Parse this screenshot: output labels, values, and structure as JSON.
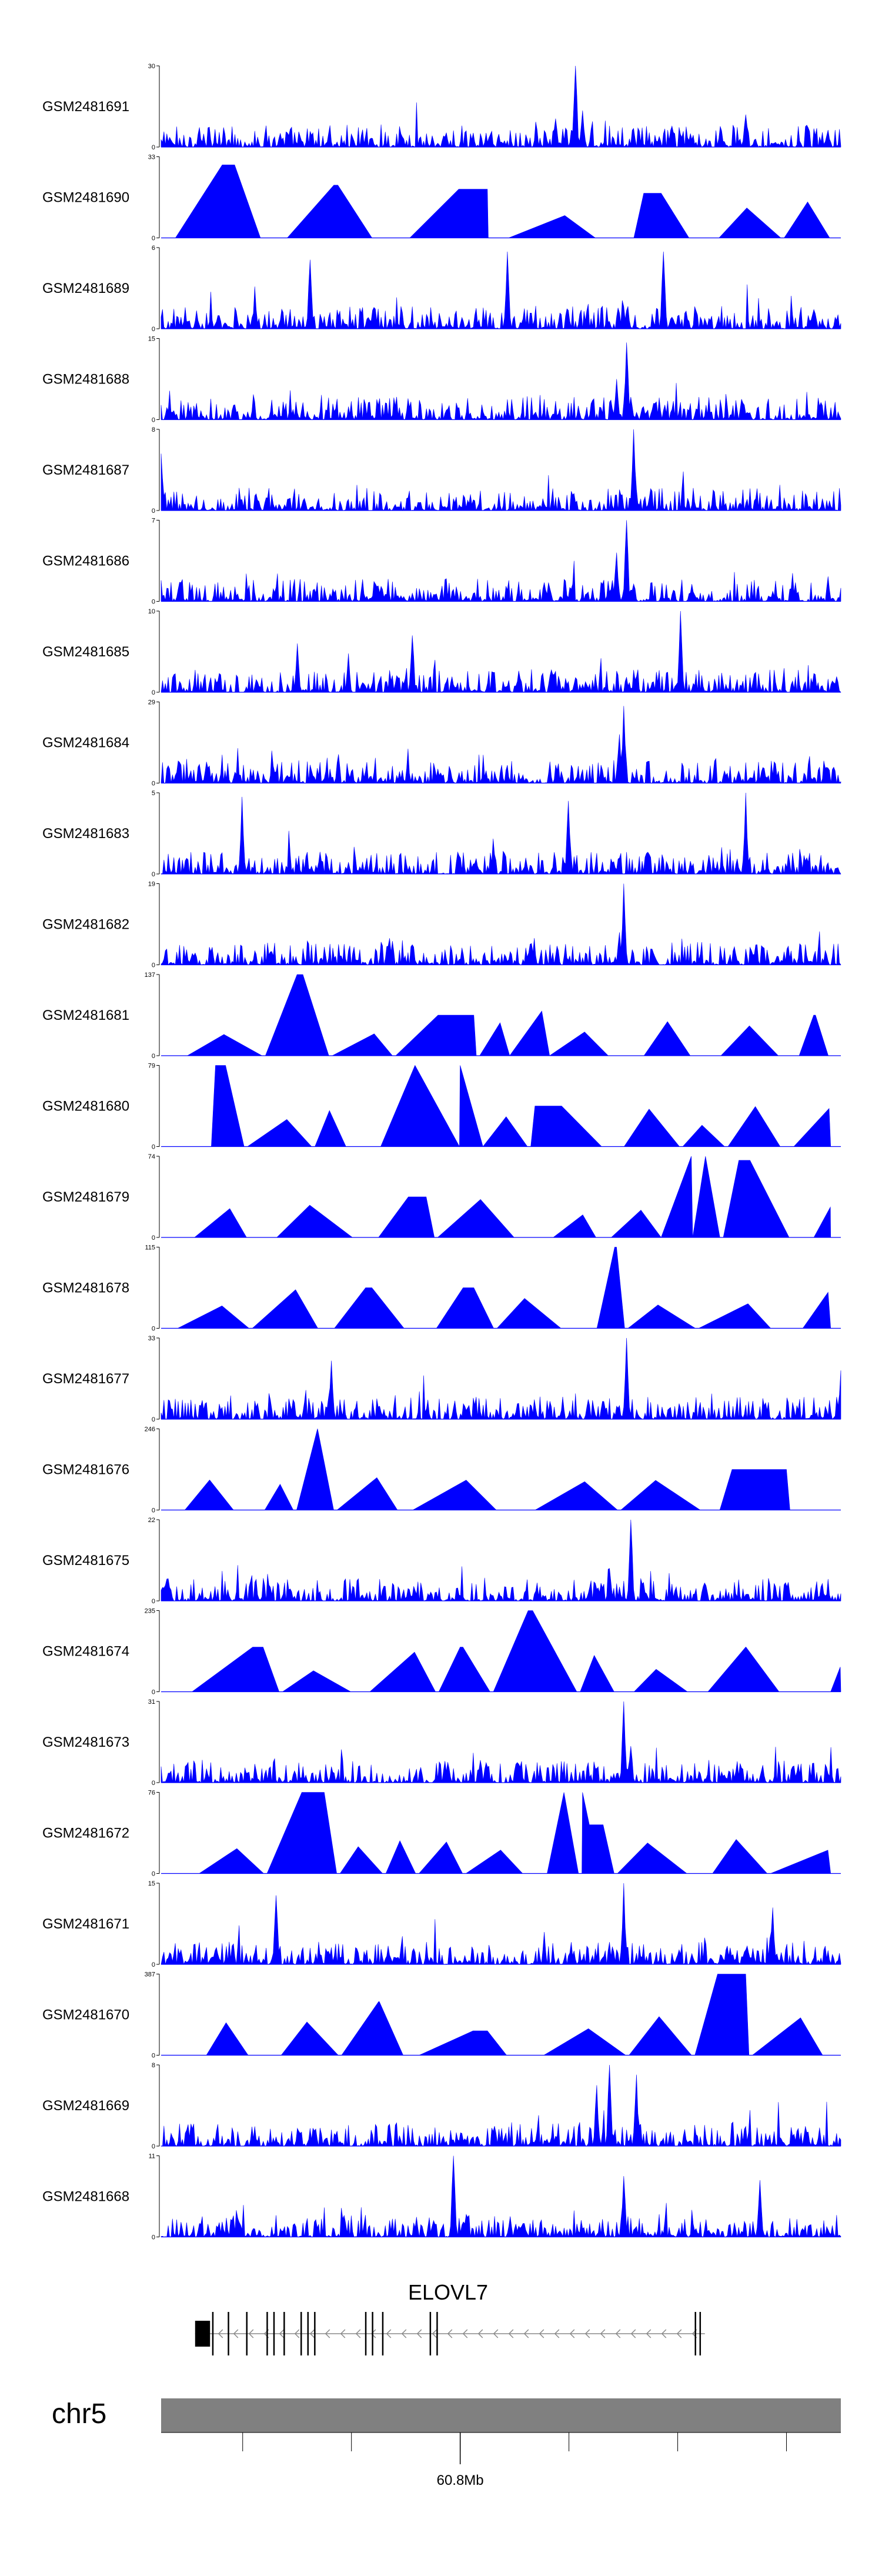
{
  "colors": {
    "signal": "#0000ff",
    "ideogram": "#808080",
    "axis": "#000000"
  },
  "chart_data": {
    "type": "area",
    "title": "",
    "xlabel": "",
    "ylabel": "",
    "tracks": [
      {
        "name": "GSM2481691",
        "ymax": "30",
        "style": "dense",
        "peaks": [
          [
            0.61,
            1.0
          ],
          [
            0.62,
            0.45
          ],
          [
            0.58,
            0.35
          ],
          [
            0.86,
            0.4
          ]
        ]
      },
      {
        "name": "GSM2481690",
        "ymax": "33",
        "style": "triangles",
        "peaks": [
          [
            0.09,
            0.9
          ],
          [
            0.26,
            0.65
          ],
          [
            0.48,
            0.6
          ],
          [
            0.71,
            0.55
          ]
        ]
      },
      {
        "name": "GSM2481689",
        "ymax": "6",
        "style": "dense",
        "peaks": [
          [
            0.51,
            0.95
          ],
          [
            0.74,
            0.95
          ],
          [
            0.22,
            0.85
          ]
        ]
      },
      {
        "name": "GSM2481688",
        "ymax": "15",
        "style": "dense",
        "peaks": [
          [
            0.685,
            0.95
          ],
          [
            0.67,
            0.5
          ]
        ]
      },
      {
        "name": "GSM2481687",
        "ymax": "8",
        "style": "dense",
        "peaks": [
          [
            0.695,
            1.0
          ],
          [
            0.0,
            0.7
          ]
        ]
      },
      {
        "name": "GSM2481686",
        "ymax": "7",
        "style": "dense",
        "peaks": [
          [
            0.685,
            1.0
          ],
          [
            0.67,
            0.6
          ]
        ]
      },
      {
        "name": "GSM2481685",
        "ymax": "10",
        "style": "dense",
        "peaks": [
          [
            0.765,
            1.0
          ],
          [
            0.37,
            0.7
          ],
          [
            0.2,
            0.6
          ]
        ]
      },
      {
        "name": "GSM2481684",
        "ymax": "29",
        "style": "dense",
        "peaks": [
          [
            0.68,
            0.95
          ],
          [
            0.675,
            0.6
          ],
          [
            0.85,
            0.15
          ]
        ]
      },
      {
        "name": "GSM2481683",
        "ymax": "5",
        "style": "dense",
        "peaks": [
          [
            0.86,
            1.0
          ],
          [
            0.12,
            0.95
          ],
          [
            0.6,
            0.9
          ]
        ]
      },
      {
        "name": "GSM2481682",
        "ymax": "19",
        "style": "dense",
        "peaks": [
          [
            0.68,
            1.0
          ],
          [
            0.675,
            0.4
          ]
        ]
      },
      {
        "name": "GSM2481681",
        "ymax": "137",
        "style": "triangles",
        "peaks": [
          [
            0.2,
            1.0
          ],
          [
            0.46,
            0.5
          ],
          [
            0.56,
            0.55
          ],
          [
            0.96,
            0.5
          ]
        ]
      },
      {
        "name": "GSM2481680",
        "ymax": "79",
        "style": "triangles",
        "peaks": [
          [
            0.08,
            1.0
          ],
          [
            0.44,
            1.0
          ],
          [
            0.55,
            0.5
          ]
        ]
      },
      {
        "name": "GSM2481679",
        "ymax": "74",
        "style": "triangles",
        "peaks": [
          [
            0.78,
            1.0
          ],
          [
            0.85,
            0.95
          ],
          [
            0.39,
            0.5
          ]
        ]
      },
      {
        "name": "GSM2481678",
        "ymax": "115",
        "style": "triangles",
        "peaks": [
          [
            0.67,
            1.0
          ],
          [
            0.31,
            0.5
          ],
          [
            0.46,
            0.5
          ]
        ]
      },
      {
        "name": "GSM2481677",
        "ymax": "33",
        "style": "dense",
        "peaks": [
          [
            0.685,
            1.0
          ],
          [
            0.25,
            0.72
          ],
          [
            1.0,
            0.6
          ]
        ]
      },
      {
        "name": "GSM2481676",
        "ymax": "246",
        "style": "triangles",
        "peaks": [
          [
            0.23,
            1.0
          ],
          [
            0.84,
            0.5
          ],
          [
            0.92,
            0.5
          ]
        ]
      },
      {
        "name": "GSM2481675",
        "ymax": "22",
        "style": "dense",
        "peaks": [
          [
            0.69,
            1.0
          ],
          [
            0.66,
            0.4
          ]
        ]
      },
      {
        "name": "GSM2481674",
        "ymax": "235",
        "style": "triangles",
        "peaks": [
          [
            0.54,
            1.0
          ],
          [
            0.15,
            0.55
          ],
          [
            0.44,
            0.55
          ],
          [
            0.86,
            0.55
          ]
        ]
      },
      {
        "name": "GSM2481673",
        "ymax": "31",
        "style": "dense",
        "peaks": [
          [
            0.68,
            1.0
          ],
          [
            0.69,
            0.45
          ]
        ]
      },
      {
        "name": "GSM2481672",
        "ymax": "76",
        "style": "triangles",
        "peaks": [
          [
            0.24,
            1.0
          ],
          [
            0.62,
            1.0
          ],
          [
            0.63,
            0.6
          ]
        ]
      },
      {
        "name": "GSM2481671",
        "ymax": "15",
        "style": "dense",
        "peaks": [
          [
            0.68,
            1.0
          ],
          [
            0.17,
            0.85
          ],
          [
            0.9,
            0.7
          ]
        ]
      },
      {
        "name": "GSM2481670",
        "ymax": "387",
        "style": "triangles",
        "peaks": [
          [
            0.86,
            1.0
          ],
          [
            0.32,
            0.66
          ],
          [
            0.48,
            0.3
          ]
        ]
      },
      {
        "name": "GSM2481669",
        "ymax": "8",
        "style": "dense",
        "peaks": [
          [
            0.66,
            1.0
          ],
          [
            0.7,
            0.88
          ],
          [
            0.64,
            0.75
          ]
        ]
      },
      {
        "name": "GSM2481668",
        "ymax": "11",
        "style": "dense",
        "peaks": [
          [
            0.43,
            1.0
          ],
          [
            0.68,
            0.75
          ],
          [
            0.88,
            0.7
          ]
        ]
      }
    ],
    "gene": {
      "name": "ELOVL7",
      "strand": "-",
      "start": 0.05,
      "end": 0.8,
      "exons": [
        [
          0.05,
          0.072
        ],
        [
          0.075,
          0.077
        ],
        [
          0.098,
          0.1
        ],
        [
          0.125,
          0.127
        ],
        [
          0.155,
          0.157
        ],
        [
          0.165,
          0.167
        ],
        [
          0.18,
          0.182
        ],
        [
          0.205,
          0.207
        ],
        [
          0.215,
          0.217
        ],
        [
          0.225,
          0.227
        ],
        [
          0.3,
          0.302
        ],
        [
          0.31,
          0.312
        ],
        [
          0.325,
          0.327
        ],
        [
          0.395,
          0.397
        ],
        [
          0.405,
          0.407
        ],
        [
          0.785,
          0.787
        ],
        [
          0.792,
          0.794
        ]
      ]
    },
    "chromosome": "chr5",
    "axis_tick_label": "60.8Mb",
    "axis_tick_label_position": 0.44,
    "minor_ticks": [
      0.12,
      0.28,
      0.44,
      0.6,
      0.76,
      0.92
    ]
  }
}
